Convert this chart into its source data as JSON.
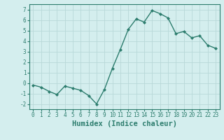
{
  "x": [
    0,
    1,
    2,
    3,
    4,
    5,
    6,
    7,
    8,
    9,
    10,
    11,
    12,
    13,
    14,
    15,
    16,
    17,
    18,
    19,
    20,
    21,
    22,
    23
  ],
  "y": [
    -0.2,
    -0.4,
    -0.8,
    -1.1,
    -0.3,
    -0.5,
    -0.7,
    -1.2,
    -2.0,
    -0.6,
    1.4,
    3.2,
    5.1,
    6.1,
    5.8,
    6.9,
    6.6,
    6.2,
    4.7,
    4.9,
    4.3,
    4.5,
    3.6,
    3.3
  ],
  "line_color": "#2d7d6e",
  "marker": "D",
  "markersize": 2,
  "linewidth": 1.0,
  "background_color": "#d4eeee",
  "grid_color": "#b8d8d8",
  "xlabel": "Humidex (Indice chaleur)",
  "ylim": [
    -2.5,
    7.5
  ],
  "xlim": [
    -0.5,
    23.5
  ],
  "yticks": [
    -2,
    -1,
    0,
    1,
    2,
    3,
    4,
    5,
    6,
    7
  ],
  "xticks": [
    0,
    1,
    2,
    3,
    4,
    5,
    6,
    7,
    8,
    9,
    10,
    11,
    12,
    13,
    14,
    15,
    16,
    17,
    18,
    19,
    20,
    21,
    22,
    23
  ],
  "tick_color": "#2d7d6e",
  "tick_fontsize": 5.5,
  "xlabel_fontsize": 7.5
}
